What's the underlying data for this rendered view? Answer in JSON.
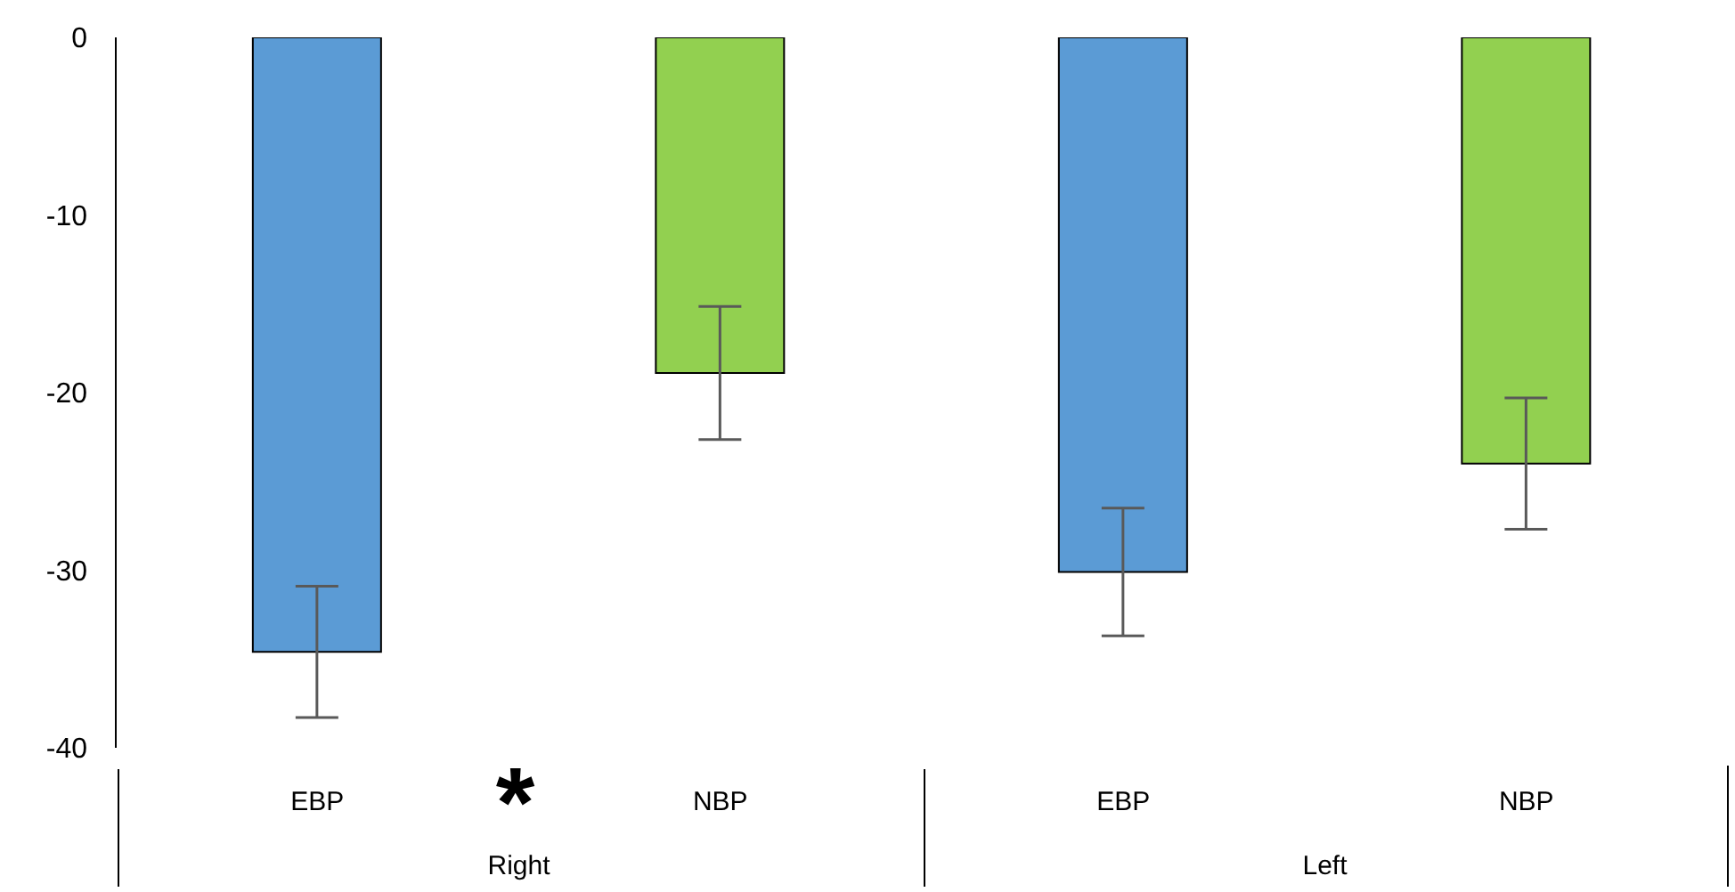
{
  "chart_data": {
    "type": "bar",
    "categories": [
      "EBP",
      "NBP",
      "EBP",
      "NBP"
    ],
    "values": [
      -34.6,
      -18.9,
      -30.1,
      -24.0
    ],
    "colors": [
      "#5b9bd5",
      "#92d050",
      "#5b9bd5",
      "#92d050"
    ],
    "errors": [
      3.7,
      3.75,
      3.6,
      3.7
    ],
    "ylim": [
      -40,
      0
    ],
    "yticks": [
      0,
      -10,
      -20,
      -30,
      -40
    ],
    "annotations": [
      "*",
      "Right",
      "Left"
    ]
  }
}
